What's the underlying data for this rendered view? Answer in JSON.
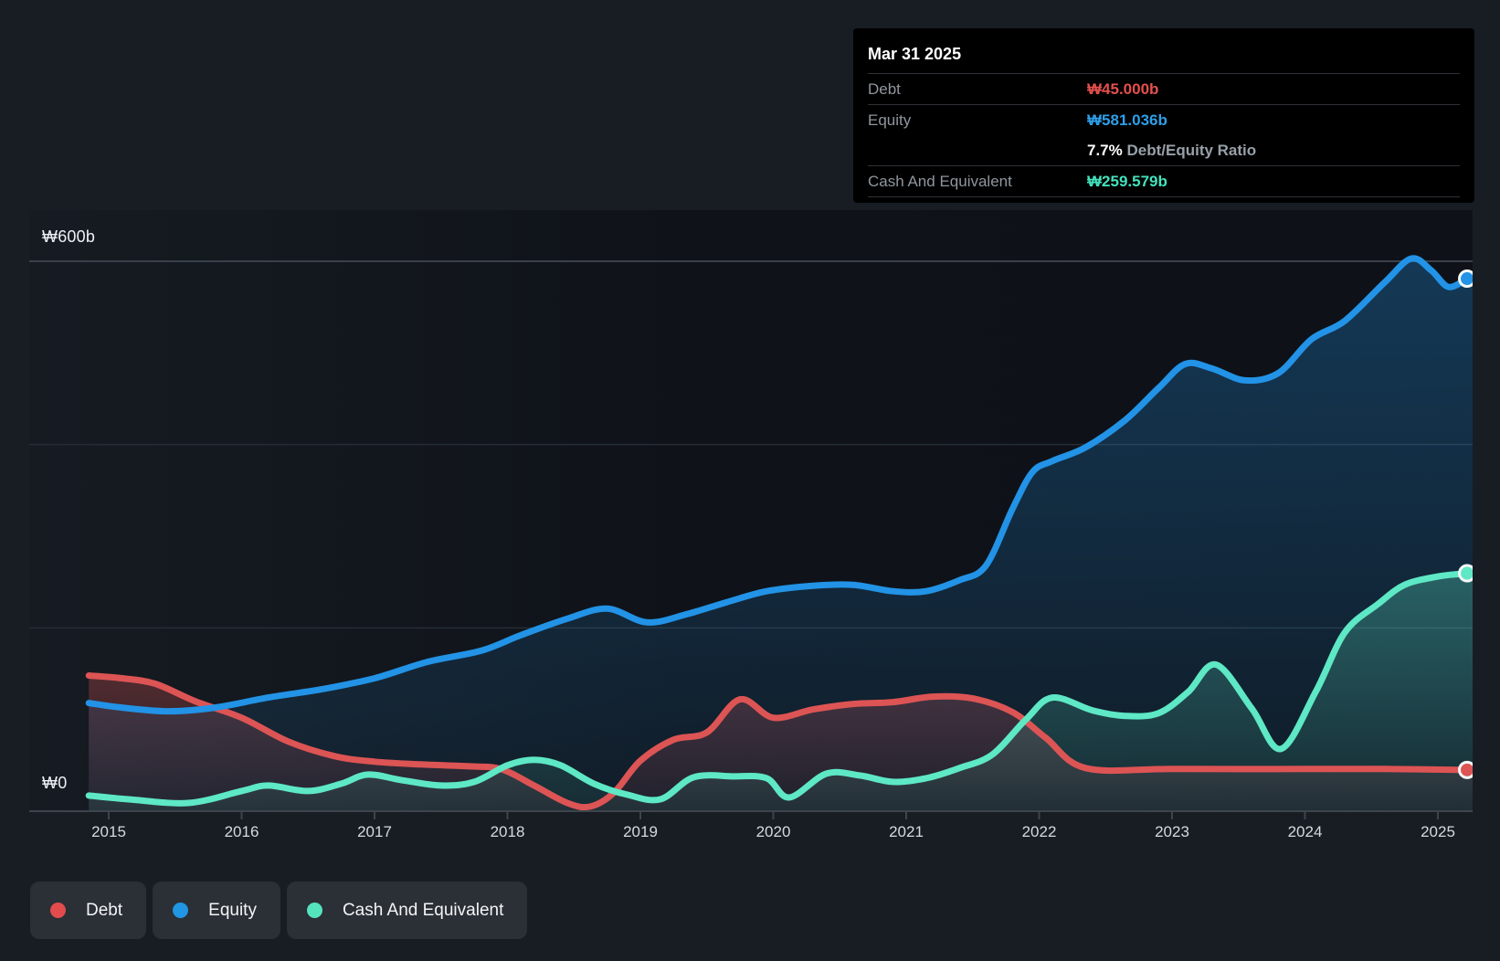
{
  "tooltip": {
    "date": "Mar 31 2025",
    "debt_label": "Debt",
    "debt_value": "₩45.000b",
    "equity_label": "Equity",
    "equity_value": "₩581.036b",
    "ratio_value": "7.7%",
    "ratio_label": "Debt/Equity Ratio",
    "cash_label": "Cash And Equivalent",
    "cash_value": "₩259.579b"
  },
  "legend": {
    "items": [
      {
        "label": "Debt",
        "color": "#e24c4c"
      },
      {
        "label": "Equity",
        "color": "#2196e3"
      },
      {
        "label": "Cash And Equivalent",
        "color": "#55e3bd"
      }
    ]
  },
  "chart_data": {
    "type": "area",
    "title": "",
    "xlabel": "",
    "ylabel": "",
    "x_axis": {
      "labels": [
        "2015",
        "2016",
        "2017",
        "2018",
        "2019",
        "2020",
        "2021",
        "2022",
        "2023",
        "2024",
        "2025"
      ],
      "range": [
        2014.85,
        2025.3
      ]
    },
    "y_axis": {
      "unit": "₩ billions",
      "tick_labels": [
        {
          "label": "₩600b",
          "value": 600
        },
        {
          "label": "₩0",
          "value": 0
        }
      ],
      "gridline_values": [
        600,
        400,
        200
      ],
      "range": [
        0,
        650
      ],
      "grid": true
    },
    "legend_position": "bottom-left",
    "series": [
      {
        "name": "Debt",
        "color": "#dd5454",
        "points": [
          [
            2014.85,
            148
          ],
          [
            2015.1,
            145
          ],
          [
            2015.35,
            139
          ],
          [
            2015.65,
            120
          ],
          [
            2016.0,
            102
          ],
          [
            2016.35,
            76
          ],
          [
            2016.7,
            60
          ],
          [
            2017.0,
            54
          ],
          [
            2017.35,
            51
          ],
          [
            2017.7,
            49
          ],
          [
            2017.95,
            46
          ],
          [
            2018.2,
            28
          ],
          [
            2018.45,
            9
          ],
          [
            2018.62,
            5
          ],
          [
            2018.8,
            20
          ],
          [
            2019.0,
            55
          ],
          [
            2019.25,
            78
          ],
          [
            2019.5,
            86
          ],
          [
            2019.75,
            122
          ],
          [
            2020.0,
            102
          ],
          [
            2020.3,
            111
          ],
          [
            2020.6,
            117
          ],
          [
            2020.9,
            119
          ],
          [
            2021.2,
            125
          ],
          [
            2021.5,
            123
          ],
          [
            2021.8,
            108
          ],
          [
            2022.05,
            80
          ],
          [
            2022.35,
            47
          ],
          [
            2023.0,
            46
          ],
          [
            2024.0,
            46
          ],
          [
            2024.6,
            46
          ],
          [
            2025.22,
            45.0
          ]
        ]
      },
      {
        "name": "Equity",
        "color": "#2293e6",
        "points": [
          [
            2014.85,
            118
          ],
          [
            2015.1,
            113
          ],
          [
            2015.45,
            109
          ],
          [
            2015.8,
            113
          ],
          [
            2016.2,
            124
          ],
          [
            2016.6,
            133
          ],
          [
            2017.0,
            145
          ],
          [
            2017.4,
            163
          ],
          [
            2017.8,
            175
          ],
          [
            2018.1,
            192
          ],
          [
            2018.45,
            210
          ],
          [
            2018.75,
            221
          ],
          [
            2019.05,
            206
          ],
          [
            2019.35,
            215
          ],
          [
            2019.65,
            228
          ],
          [
            2019.95,
            240
          ],
          [
            2020.3,
            246
          ],
          [
            2020.6,
            247
          ],
          [
            2020.9,
            240
          ],
          [
            2021.15,
            240
          ],
          [
            2021.4,
            252
          ],
          [
            2021.6,
            268
          ],
          [
            2021.8,
            330
          ],
          [
            2021.95,
            370
          ],
          [
            2022.1,
            382
          ],
          [
            2022.35,
            397
          ],
          [
            2022.65,
            427
          ],
          [
            2022.9,
            462
          ],
          [
            2023.1,
            488
          ],
          [
            2023.3,
            483
          ],
          [
            2023.55,
            470
          ],
          [
            2023.8,
            478
          ],
          [
            2024.05,
            515
          ],
          [
            2024.3,
            535
          ],
          [
            2024.6,
            577
          ],
          [
            2024.8,
            603
          ],
          [
            2024.95,
            590
          ],
          [
            2025.08,
            572
          ],
          [
            2025.22,
            581.036
          ]
        ]
      },
      {
        "name": "Cash And Equivalent",
        "color": "#5ee8c5",
        "points": [
          [
            2014.85,
            17
          ],
          [
            2015.15,
            13
          ],
          [
            2015.6,
            9
          ],
          [
            2016.0,
            22
          ],
          [
            2016.2,
            28
          ],
          [
            2016.5,
            22
          ],
          [
            2016.75,
            30
          ],
          [
            2016.95,
            40
          ],
          [
            2017.2,
            34
          ],
          [
            2017.5,
            28
          ],
          [
            2017.75,
            32
          ],
          [
            2018.0,
            50
          ],
          [
            2018.2,
            56
          ],
          [
            2018.4,
            50
          ],
          [
            2018.65,
            30
          ],
          [
            2018.9,
            18
          ],
          [
            2019.15,
            13
          ],
          [
            2019.4,
            37
          ],
          [
            2019.7,
            38
          ],
          [
            2019.95,
            36
          ],
          [
            2020.12,
            15
          ],
          [
            2020.4,
            41
          ],
          [
            2020.65,
            39
          ],
          [
            2020.9,
            32
          ],
          [
            2021.15,
            36
          ],
          [
            2021.4,
            47
          ],
          [
            2021.65,
            62
          ],
          [
            2021.9,
            100
          ],
          [
            2022.1,
            124
          ],
          [
            2022.4,
            110
          ],
          [
            2022.65,
            104
          ],
          [
            2022.9,
            107
          ],
          [
            2023.12,
            130
          ],
          [
            2023.33,
            160
          ],
          [
            2023.6,
            112
          ],
          [
            2023.82,
            68
          ],
          [
            2024.08,
            130
          ],
          [
            2024.3,
            195
          ],
          [
            2024.55,
            226
          ],
          [
            2024.75,
            247
          ],
          [
            2025.0,
            256
          ],
          [
            2025.22,
            259.579
          ]
        ]
      }
    ]
  }
}
